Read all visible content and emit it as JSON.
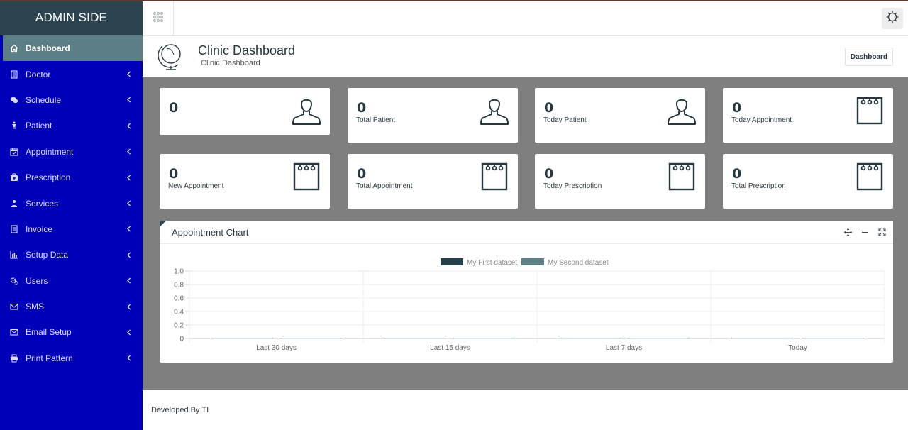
{
  "sidebar": {
    "brand": "ADMIN SIDE",
    "items": [
      {
        "label": "Dashboard",
        "icon": "home-icon"
      },
      {
        "label": "Doctor",
        "icon": "document-icon"
      },
      {
        "label": "Schedule",
        "icon": "chat-icon"
      },
      {
        "label": "Patient",
        "icon": "person-icon"
      },
      {
        "label": "Appointment",
        "icon": "calendar-check-icon"
      },
      {
        "label": "Prescription",
        "icon": "medkit-icon"
      },
      {
        "label": "Services",
        "icon": "user-group-icon"
      },
      {
        "label": "Invoice",
        "icon": "document-icon"
      },
      {
        "label": "Setup Data",
        "icon": "bar-chart-icon"
      },
      {
        "label": "Users",
        "icon": "gears-icon"
      },
      {
        "label": "SMS",
        "icon": "envelope-icon"
      },
      {
        "label": "Email Setup",
        "icon": "envelope-icon"
      },
      {
        "label": "Print Pattern",
        "icon": "printer-icon"
      }
    ]
  },
  "header": {
    "title": "Clinic Dashboard",
    "subtitle": "Clinic Dashboard",
    "breadcrumb": "Dashboard"
  },
  "cards": [
    {
      "value": "0",
      "label": "",
      "icon": "user-icon"
    },
    {
      "value": "0",
      "label": "Total Patient",
      "icon": "user-icon"
    },
    {
      "value": "0",
      "label": "Today Patient",
      "icon": "user-icon"
    },
    {
      "value": "0",
      "label": "Today Appointment",
      "icon": "notepad-icon"
    },
    {
      "value": "0",
      "label": "New Appointment",
      "icon": "notepad-icon"
    },
    {
      "value": "0",
      "label": "Total Appointment",
      "icon": "notepad-icon"
    },
    {
      "value": "0",
      "label": "Today Prescription",
      "icon": "notepad-icon"
    },
    {
      "value": "0",
      "label": "Total Prescription",
      "icon": "notepad-icon"
    }
  ],
  "chart_panel": {
    "title": "Appointment Chart"
  },
  "chart_data": {
    "type": "bar",
    "categories": [
      "Last 30 days",
      "Last 15 days",
      "Last 7 days",
      "Today"
    ],
    "series": [
      {
        "name": "My First dataset",
        "values": [
          0,
          0,
          0,
          0
        ],
        "color": "#25414c"
      },
      {
        "name": "My Second dataset",
        "values": [
          0,
          0,
          0,
          0
        ],
        "color": "#5d7f87"
      }
    ],
    "ylim": [
      0,
      1
    ],
    "yticks": [
      "1.0",
      "0.8",
      "0.6",
      "0.4",
      "0.2",
      "0"
    ],
    "legend": "top-center",
    "grid": true
  },
  "footer": {
    "text": "Developed By TI"
  },
  "colors": {
    "sidebar": "#0000b8",
    "brand": "#2b4450",
    "active": "#5c7f86",
    "content_bg": "#7f7f7f",
    "text_dark": "#263940"
  }
}
